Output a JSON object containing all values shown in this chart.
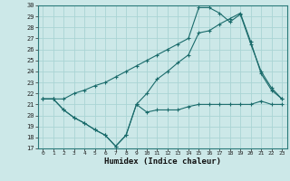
{
  "xlabel": "Humidex (Indice chaleur)",
  "ylabel": "",
  "background_color": "#cce8e8",
  "grid_color": "#aad4d4",
  "line_color": "#1a6b6b",
  "xlim": [
    -0.5,
    23.5
  ],
  "ylim": [
    17,
    30
  ],
  "xticks": [
    0,
    1,
    2,
    3,
    4,
    5,
    6,
    7,
    8,
    9,
    10,
    11,
    12,
    13,
    14,
    15,
    16,
    17,
    18,
    19,
    20,
    21,
    22,
    23
  ],
  "yticks": [
    17,
    18,
    19,
    20,
    21,
    22,
    23,
    24,
    25,
    26,
    27,
    28,
    29,
    30
  ],
  "line1_x": [
    0,
    1,
    2,
    3,
    4,
    5,
    6,
    7,
    8,
    9,
    10,
    11,
    12,
    13,
    14,
    15,
    16,
    17,
    18,
    19,
    20,
    21,
    22,
    23
  ],
  "line1_y": [
    21.5,
    21.5,
    20.5,
    19.8,
    19.3,
    18.7,
    18.2,
    17.2,
    18.2,
    21.0,
    20.3,
    20.5,
    20.5,
    20.5,
    20.8,
    21.0,
    21.0,
    21.0,
    21.0,
    21.0,
    21.0,
    21.3,
    21.0,
    21.0
  ],
  "line2_x": [
    0,
    1,
    2,
    3,
    4,
    5,
    6,
    7,
    8,
    9,
    10,
    11,
    12,
    13,
    14,
    15,
    16,
    17,
    18,
    19,
    20,
    21,
    22,
    23
  ],
  "line2_y": [
    21.5,
    21.5,
    20.5,
    19.8,
    19.3,
    18.7,
    18.2,
    17.2,
    18.2,
    21.0,
    22.0,
    23.3,
    24.0,
    24.8,
    25.5,
    27.5,
    27.7,
    28.3,
    28.8,
    29.3,
    26.7,
    23.8,
    22.3,
    21.5
  ],
  "line3_x": [
    0,
    1,
    2,
    3,
    4,
    5,
    6,
    7,
    8,
    9,
    10,
    11,
    12,
    13,
    14,
    15,
    16,
    17,
    18,
    19,
    20,
    21,
    22,
    23
  ],
  "line3_y": [
    21.5,
    21.5,
    21.5,
    22.0,
    22.3,
    22.7,
    23.0,
    23.5,
    24.0,
    24.5,
    25.0,
    25.5,
    26.0,
    26.5,
    27.0,
    29.8,
    29.8,
    29.3,
    28.5,
    29.2,
    26.5,
    24.0,
    22.5,
    21.5
  ]
}
